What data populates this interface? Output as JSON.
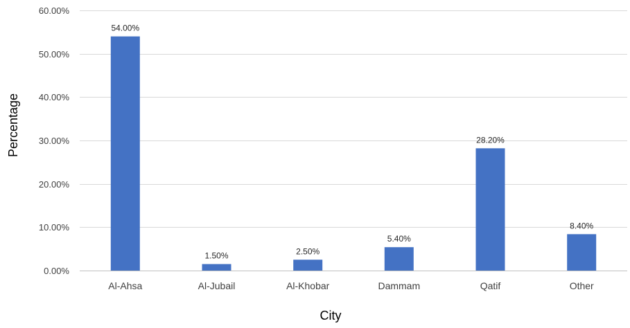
{
  "chart_data": {
    "type": "bar",
    "categories": [
      "Al-Ahsa",
      "Al-Jubail",
      "Al-Khobar",
      "Dammam",
      "Qatif",
      "Other"
    ],
    "values": [
      54.0,
      1.5,
      2.5,
      5.4,
      28.2,
      8.4
    ],
    "data_labels": [
      "54.00%",
      "1.50%",
      "2.50%",
      "5.40%",
      "28.20%",
      "8.40%"
    ],
    "xlabel": "City",
    "ylabel": "Percentage",
    "ylim": [
      0,
      60
    ],
    "yticks": [
      0,
      10,
      20,
      30,
      40,
      50,
      60
    ],
    "ytick_labels": [
      "0.00%",
      "10.00%",
      "20.00%",
      "30.00%",
      "40.00%",
      "50.00%",
      "60.00%"
    ],
    "grid": true,
    "legend": "none",
    "bar_color": "#4472C4"
  }
}
